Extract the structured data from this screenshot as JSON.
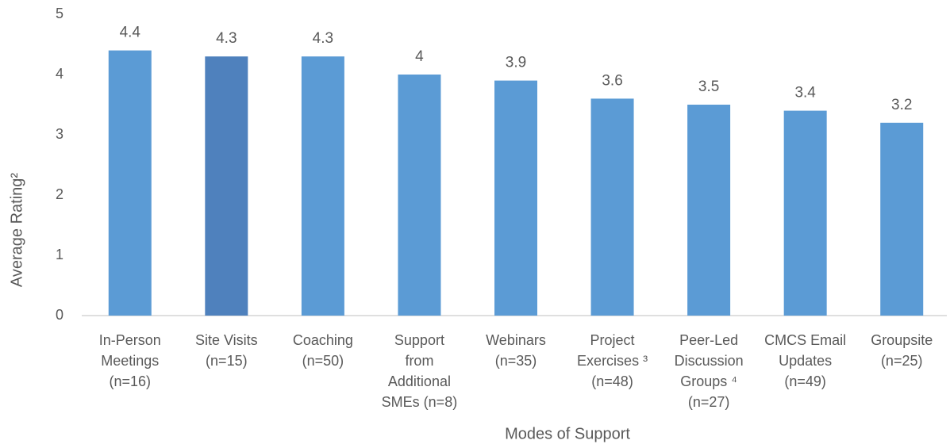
{
  "chart_data": {
    "type": "bar",
    "x_label": "Modes of Support",
    "y_label": "Average Rating²",
    "categories": [
      [
        "In-Person",
        "Meetings",
        "(n=16)"
      ],
      [
        "Site Visits",
        "(n=15)"
      ],
      [
        "Coaching",
        "(n=50)"
      ],
      [
        "Support",
        "from",
        "Additional",
        "SMEs (n=8)"
      ],
      [
        "Webinars",
        "(n=35)"
      ],
      [
        "Project",
        "Exercises ³",
        "(n=48)"
      ],
      [
        "Peer-Led",
        "Discussion",
        "Groups ⁴",
        "(n=27)"
      ],
      [
        "CMCS Email",
        "Updates",
        "(n=49)"
      ],
      [
        "Groupsite",
        "(n=25)"
      ]
    ],
    "values": [
      4.4,
      4.3,
      4.3,
      4,
      3.9,
      3.6,
      3.5,
      3.4,
      3.2
    ],
    "colors": [
      "#5b9bd5",
      "#4f81bd",
      "#5b9bd5",
      "#5b9bd5",
      "#5b9bd5",
      "#5b9bd5",
      "#5b9bd5",
      "#5b9bd5",
      "#5b9bd5"
    ],
    "ylim": [
      0,
      5
    ],
    "yticks": [
      0,
      1,
      2,
      3,
      4,
      5
    ],
    "grid": false
  }
}
